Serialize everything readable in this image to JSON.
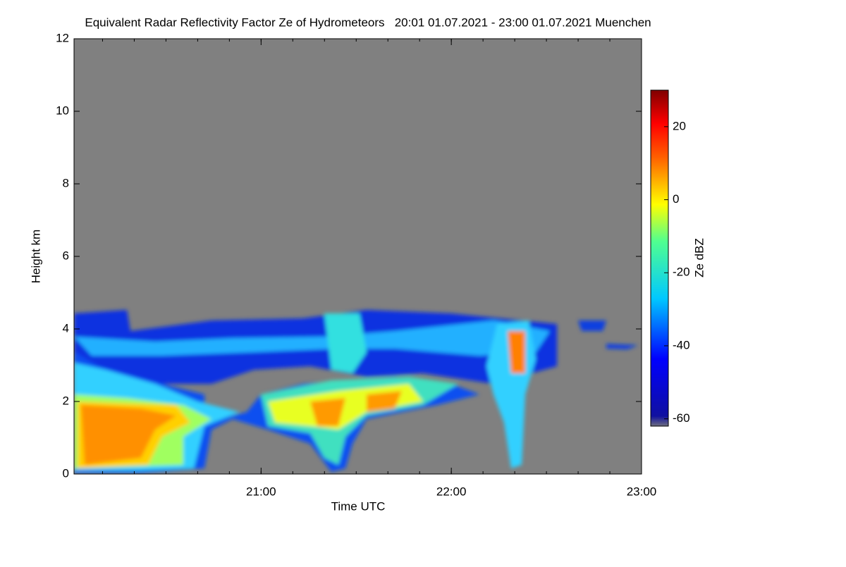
{
  "chart_data": {
    "type": "heatmap",
    "title": "Equivalent Radar Reflectivity Factor Ze of Hydrometeors   20:01 01.07.2021 - 23:00 01.07.2021 Muenchen",
    "x_label": "Time UTC",
    "y_label": "Height km",
    "xlim": [
      20.0167,
      23
    ],
    "xticks": [
      {
        "value": 21,
        "label": "21:00"
      },
      {
        "value": 22,
        "label": "22:00"
      },
      {
        "value": 23,
        "label": "23:00"
      }
    ],
    "ylim": [
      0,
      12
    ],
    "yticks": [
      0,
      2,
      4,
      6,
      8,
      10,
      12
    ],
    "background": "#808080",
    "colorbar": {
      "label": "Ze dBZ",
      "clim": [
        -62,
        30
      ],
      "ticks": [
        20,
        0,
        -20,
        -40,
        -60
      ],
      "colormap": "jet"
    }
  }
}
